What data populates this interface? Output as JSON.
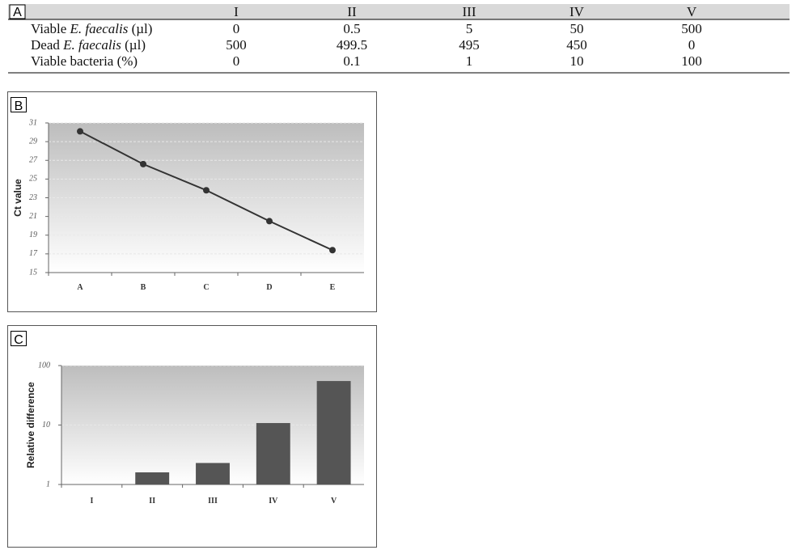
{
  "table": {
    "label": "A",
    "columns": [
      "I",
      "II",
      "III",
      "IV",
      "V"
    ],
    "rows": [
      {
        "label": [
          "Viable",
          "E. faecalis",
          "(µl)"
        ],
        "values": [
          0,
          0.5,
          5,
          50,
          500
        ]
      },
      {
        "label": [
          "Dead",
          "E. faecalis",
          "(µl)"
        ],
        "values": [
          500,
          499.5,
          495,
          450,
          0
        ]
      },
      {
        "label": [
          "Viable bacteria",
          "",
          "(%)"
        ],
        "values": [
          0,
          0.1,
          1,
          10,
          100
        ]
      }
    ]
  },
  "chart_data": [
    {
      "type": "line",
      "panel": "B",
      "y_label": "Ct value",
      "categories": [
        "A",
        "B",
        "C",
        "D",
        "E"
      ],
      "values": [
        30.1,
        26.6,
        23.8,
        20.5,
        17.4
      ],
      "color": "#333333",
      "ylim": [
        15,
        31
      ],
      "yticks": [
        15,
        17,
        19,
        21,
        23,
        25,
        27,
        29,
        31
      ],
      "grid": true
    },
    {
      "type": "bar",
      "panel": "C",
      "y_label": "Relative difference",
      "categories": [
        "I",
        "II",
        "III",
        "IV",
        "V"
      ],
      "values": [
        1,
        1.6,
        2.3,
        10.8,
        55
      ],
      "color": "#555555",
      "log_scale": true,
      "ylim": [
        1,
        100
      ],
      "yticks": [
        1,
        10,
        100
      ],
      "grid": true
    }
  ]
}
